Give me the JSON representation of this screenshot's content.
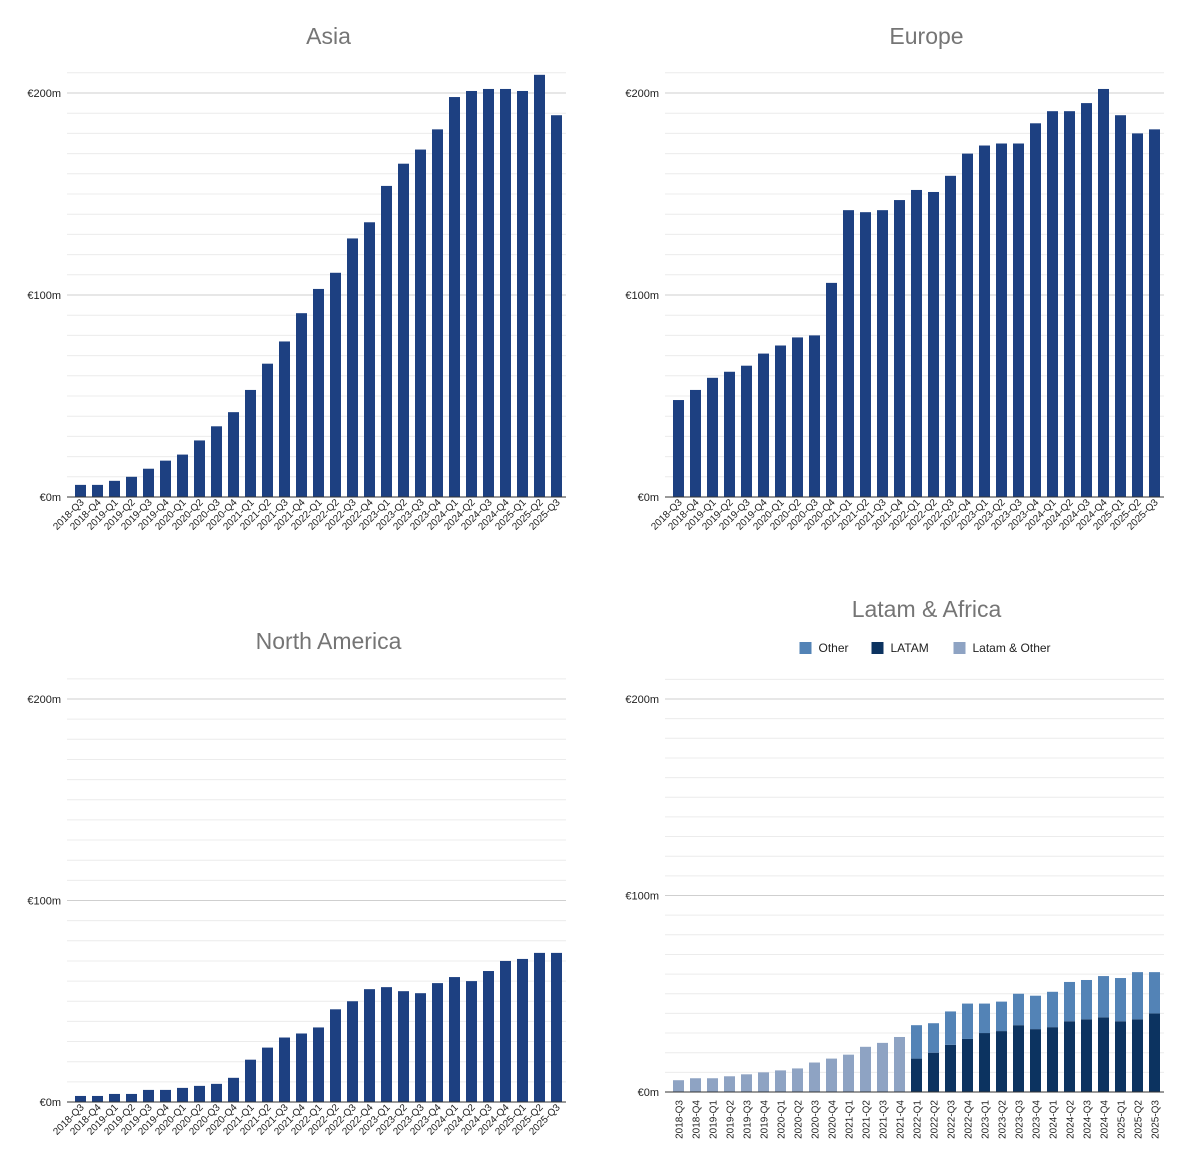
{
  "chart_data": [
    {
      "type": "bar",
      "title": "Asia",
      "categories": [
        "2018-Q3",
        "2018-Q4",
        "2019-Q1",
        "2019-Q2",
        "2019-Q3",
        "2019-Q4",
        "2020-Q1",
        "2020-Q2",
        "2020-Q3",
        "2020-Q4",
        "2021-Q1",
        "2021-Q2",
        "2021-Q3",
        "2021-Q4",
        "2022-Q1",
        "2022-Q2",
        "2022-Q3",
        "2022-Q4",
        "2023-Q1",
        "2023-Q2",
        "2023-Q3",
        "2023-Q4",
        "2024-Q1",
        "2024-Q2",
        "2024-Q3",
        "2024-Q4",
        "2025-Q1",
        "2025-Q2",
        "2025-Q3"
      ],
      "values": [
        6,
        6,
        8,
        10,
        14,
        18,
        21,
        28,
        35,
        42,
        53,
        66,
        77,
        91,
        103,
        111,
        128,
        136,
        154,
        165,
        172,
        182,
        198,
        201,
        202,
        202,
        201,
        209,
        189
      ],
      "ylim": [
        0,
        200
      ],
      "yticks": [
        "€0m",
        "€100m",
        "€200m"
      ],
      "color": "#1d4081"
    },
    {
      "type": "bar",
      "title": "Europe",
      "categories": [
        "2018-Q3",
        "2018-Q4",
        "2019-Q1",
        "2019-Q2",
        "2019-Q3",
        "2019-Q4",
        "2020-Q1",
        "2020-Q2",
        "2020-Q3",
        "2020-Q4",
        "2021-Q1",
        "2021-Q2",
        "2021-Q3",
        "2021-Q4",
        "2022-Q1",
        "2022-Q2",
        "2022-Q3",
        "2022-Q4",
        "2023-Q1",
        "2023-Q2",
        "2023-Q3",
        "2023-Q4",
        "2024-Q1",
        "2024-Q2",
        "2024-Q3",
        "2024-Q4",
        "2025-Q1",
        "2025-Q2",
        "2025-Q3"
      ],
      "values": [
        48,
        53,
        59,
        62,
        65,
        71,
        75,
        79,
        80,
        106,
        142,
        141,
        142,
        147,
        152,
        151,
        159,
        170,
        174,
        175,
        175,
        185,
        191,
        191,
        195,
        202,
        189,
        180,
        182
      ],
      "ylim": [
        0,
        200
      ],
      "yticks": [
        "€0m",
        "€100m",
        "€200m"
      ],
      "color": "#1d4081"
    },
    {
      "type": "bar",
      "title": "North America",
      "categories": [
        "2018-Q3",
        "2018-Q4",
        "2019-Q1",
        "2019-Q2",
        "2019-Q3",
        "2019-Q4",
        "2020-Q1",
        "2020-Q2",
        "2020-Q3",
        "2020-Q4",
        "2021-Q1",
        "2021-Q2",
        "2021-Q3",
        "2021-Q4",
        "2022-Q1",
        "2022-Q2",
        "2022-Q3",
        "2022-Q4",
        "2023-Q1",
        "2023-Q2",
        "2023-Q3",
        "2023-Q4",
        "2024-Q1",
        "2024-Q2",
        "2024-Q3",
        "2024-Q4",
        "2025-Q1",
        "2025-Q2",
        "2025-Q3"
      ],
      "values": [
        3,
        3,
        4,
        4,
        6,
        6,
        7,
        8,
        9,
        12,
        21,
        27,
        32,
        34,
        37,
        46,
        50,
        56,
        57,
        55,
        54,
        59,
        62,
        60,
        65,
        70,
        71,
        74,
        74
      ],
      "ylim": [
        0,
        200
      ],
      "yticks": [
        "€0m",
        "€100m",
        "€200m"
      ],
      "color": "#1d4081"
    },
    {
      "type": "bar",
      "stacked": true,
      "title": "Latam & Africa",
      "categories": [
        "2018-Q3",
        "2018-Q4",
        "2019-Q1",
        "2019-Q2",
        "2019-Q3",
        "2019-Q4",
        "2020-Q1",
        "2020-Q2",
        "2020-Q3",
        "2020-Q4",
        "2021-Q1",
        "2021-Q2",
        "2021-Q3",
        "2021-Q4",
        "2022-Q1",
        "2022-Q2",
        "2022-Q3",
        "2022-Q4",
        "2023-Q1",
        "2023-Q2",
        "2023-Q3",
        "2023-Q4",
        "2024-Q1",
        "2024-Q2",
        "2024-Q3",
        "2024-Q4",
        "2025-Q1",
        "2025-Q2",
        "2025-Q3"
      ],
      "series": [
        {
          "name": "LATAM",
          "color": "#0c3360",
          "values": [
            0,
            0,
            0,
            0,
            0,
            0,
            0,
            0,
            0,
            0,
            0,
            0,
            0,
            0,
            17,
            20,
            24,
            27,
            30,
            31,
            34,
            32,
            33,
            36,
            37,
            38,
            36,
            37,
            40
          ]
        },
        {
          "name": "Other",
          "color": "#5383b6",
          "values": [
            0,
            0,
            0,
            0,
            0,
            0,
            0,
            0,
            0,
            0,
            0,
            0,
            0,
            0,
            17,
            15,
            17,
            18,
            15,
            15,
            16,
            17,
            18,
            20,
            20,
            21,
            22,
            24,
            21
          ]
        },
        {
          "name": "Latam & Other",
          "color": "#8ea3c3",
          "values": [
            6,
            7,
            7,
            8,
            9,
            10,
            11,
            12,
            15,
            17,
            19,
            23,
            25,
            28,
            0,
            0,
            0,
            0,
            0,
            0,
            0,
            0,
            0,
            0,
            0,
            0,
            0,
            0,
            0
          ]
        }
      ],
      "legend": [
        "Other",
        "LATAM",
        "Latam & Other"
      ],
      "legend_position": "top",
      "ylim": [
        0,
        200
      ],
      "yticks": [
        "€0m",
        "€100m",
        "€200m"
      ]
    }
  ]
}
